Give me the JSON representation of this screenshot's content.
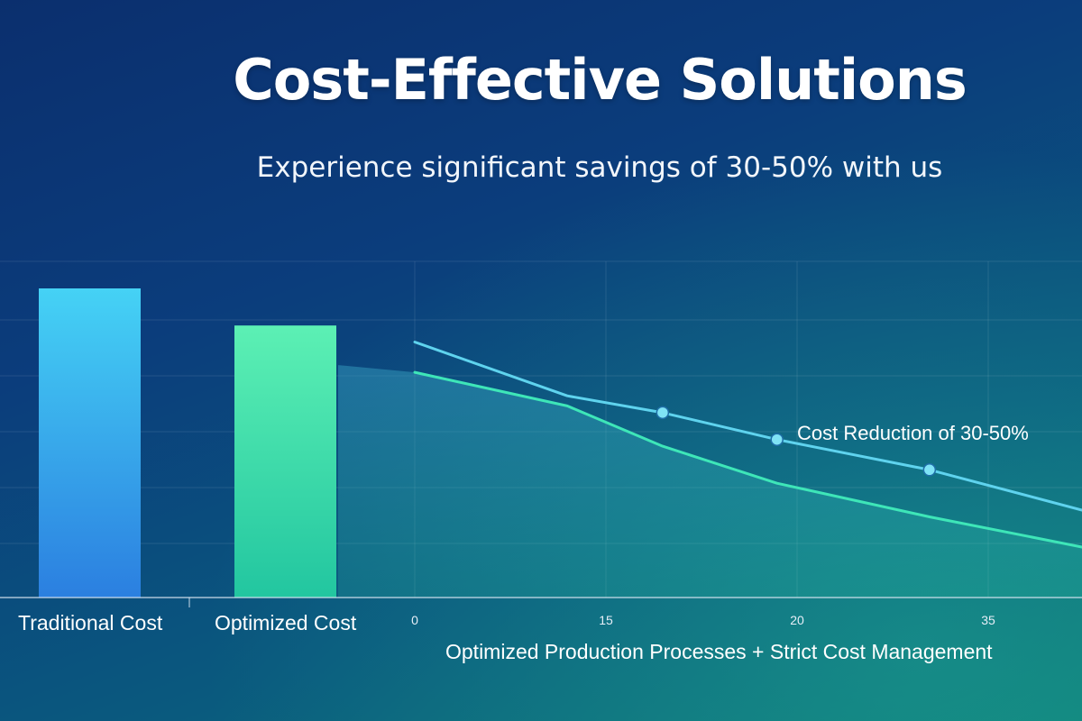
{
  "title": "Cost-Effective Solutions",
  "subtitle": "Experience significant savings of 30-50% with us",
  "chart_data": [
    {
      "type": "bar",
      "categories": [
        "Traditional Cost",
        "Optimized Cost"
      ],
      "values": [
        100,
        88
      ],
      "colors": [
        "#3fb8f0",
        "#4ee6b0"
      ]
    },
    {
      "type": "line",
      "x_ticks": [
        "0",
        "15",
        "20",
        "35"
      ],
      "series": [
        {
          "x": [
            0,
            8,
            13,
            19,
            27,
            35
          ],
          "values": [
            76,
            60,
            55,
            47,
            38,
            26
          ],
          "markers": [
            false,
            false,
            true,
            true,
            true,
            false
          ],
          "color": "#5fd3ee"
        },
        {
          "x": [
            0,
            8,
            13,
            19,
            27,
            35
          ],
          "values": [
            67,
            57,
            45,
            34,
            24,
            15
          ],
          "markers": [
            false,
            false,
            false,
            false,
            false,
            false
          ],
          "color": "#3ee6b8",
          "filled": true
        }
      ],
      "annotation": "Cost Reduction of 30-50%",
      "caption": "Optimized Production Processes + Strict Cost Management",
      "grid": true
    }
  ]
}
